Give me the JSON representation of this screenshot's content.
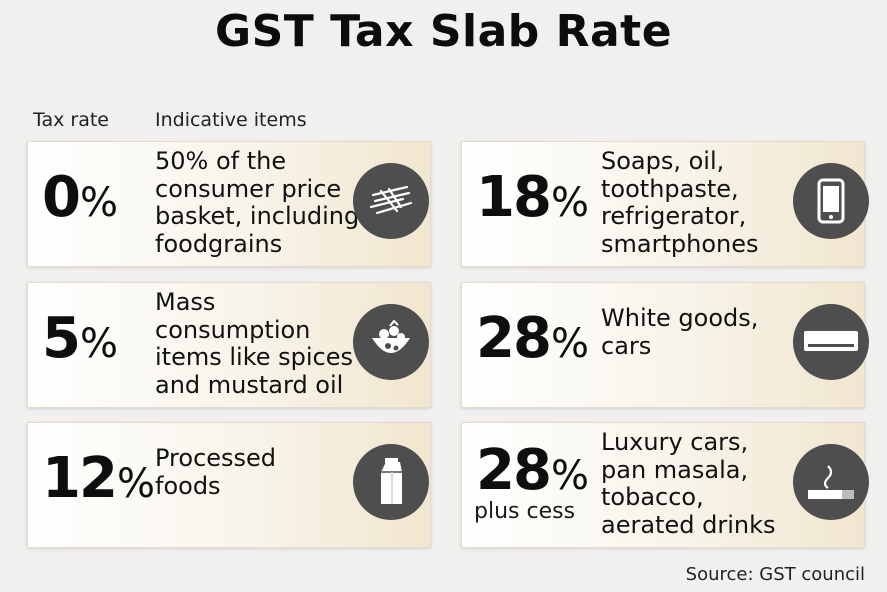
{
  "title": "GST Tax Slab Rate",
  "headers": {
    "tax_rate": "Tax rate",
    "items": "Indicative items"
  },
  "slabs": [
    {
      "rate": "0",
      "pct": "%",
      "sub": "",
      "desc": [
        "50% of the",
        "consumer price",
        "basket, including",
        "foodgrains"
      ],
      "icon": "grain-icon"
    },
    {
      "rate": "5",
      "pct": "%",
      "sub": "",
      "desc": [
        "Mass",
        "consumption",
        "items like spices",
        "and mustard oil"
      ],
      "icon": "spices-icon"
    },
    {
      "rate": "12",
      "pct": "%",
      "sub": "",
      "desc": [
        "Processed",
        "foods"
      ],
      "icon": "milk-carton-icon"
    },
    {
      "rate": "18",
      "pct": "%",
      "sub": "",
      "desc": [
        "Soaps, oil,",
        "toothpaste,",
        "refrigerator,",
        "smartphones"
      ],
      "icon": "smartphone-icon"
    },
    {
      "rate": "28",
      "pct": "%",
      "sub": "",
      "desc": [
        "White goods,",
        "cars"
      ],
      "icon": "air-conditioner-icon"
    },
    {
      "rate": "28",
      "pct": "%",
      "sub": "plus cess",
      "desc": [
        "Luxury cars,",
        "pan masala,",
        "tobacco,",
        "aerated drinks"
      ],
      "icon": "cigarette-icon"
    }
  ],
  "source": "Source: GST council"
}
